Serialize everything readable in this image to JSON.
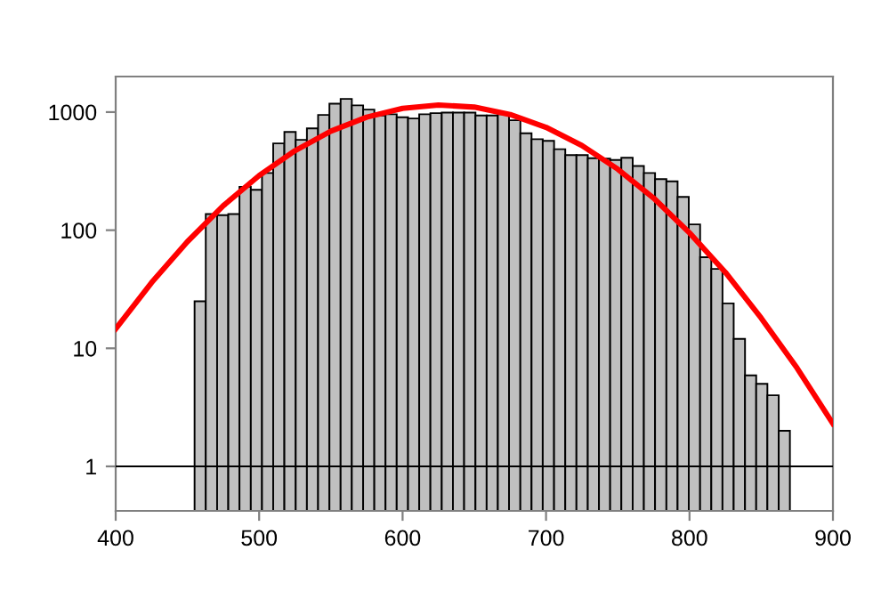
{
  "chart_data": {
    "type": "histogram",
    "log": "y",
    "grid": false,
    "bins": [
      455.0,
      462.8,
      470.7,
      478.5,
      486.3,
      494.2,
      502.0,
      509.8,
      517.6,
      525.5,
      533.3,
      541.1,
      549.0,
      556.8,
      564.6,
      572.5,
      580.3,
      588.1,
      595.9,
      603.8,
      611.6,
      619.4,
      627.3,
      635.1,
      642.9,
      650.8,
      658.6,
      666.4,
      674.2,
      682.1,
      689.9,
      697.7,
      705.6,
      713.4,
      721.2,
      729.1,
      736.9,
      744.7,
      752.5,
      760.4,
      768.2,
      776.0,
      783.9,
      791.7,
      799.5,
      807.4,
      815.2,
      823.0,
      830.8,
      838.7,
      846.5,
      854.3,
      862.2,
      870.0
    ],
    "values": [
      25,
      137,
      134,
      137,
      233,
      220,
      305,
      543,
      678,
      582,
      727,
      946,
      1180,
      1293,
      1140,
      1050,
      936,
      959,
      904,
      883,
      959,
      980,
      990,
      990,
      990,
      936,
      936,
      959,
      853,
      662,
      590,
      570,
      485,
      432,
      432,
      407,
      404,
      393,
      411,
      350,
      305,
      271,
      259,
      191,
      112,
      59,
      47,
      24,
      12,
      5.9,
      5.0,
      4.0,
      2.0
    ],
    "color": "#c0c0c0",
    "series": [
      {
        "type": "line",
        "color": "#ff0000",
        "x": [
          400,
          425,
          450,
          475,
          500,
          525,
          550,
          575,
          600,
          625,
          650,
          675,
          700,
          725,
          750,
          775,
          800,
          825,
          850,
          875,
          900
        ],
        "values": [
          14.6,
          36,
          80,
          161,
          290,
          471,
          689,
          906,
          1074,
          1148,
          1102,
          953,
          743,
          521,
          329,
          187,
          95,
          44,
          18,
          6.8,
          2.3
        ]
      }
    ],
    "ref_lines": [
      {
        "axis": "y",
        "value": 1,
        "color": "#000000"
      }
    ],
    "xlim": [
      400,
      900
    ],
    "xticks": [
      400,
      500,
      600,
      700,
      800,
      900
    ],
    "ylim": [
      0.42,
      2000
    ],
    "yticks": [
      1,
      10,
      100,
      1000
    ]
  }
}
